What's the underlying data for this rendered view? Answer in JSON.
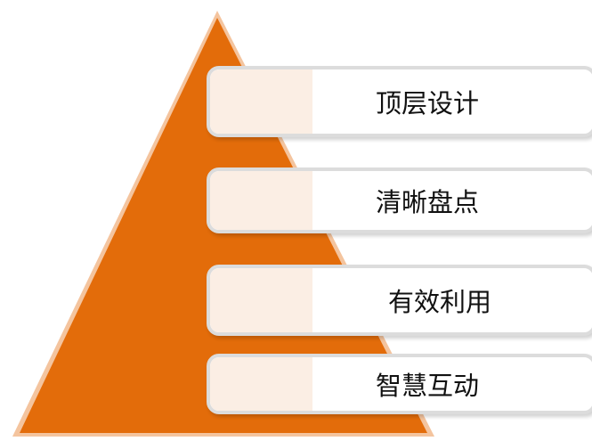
{
  "pyramid": {
    "fill_color": "#e36c0a",
    "outline_color": "#f4c49e",
    "levels": [
      {
        "label": "顶层设计"
      },
      {
        "label": "清晰盘点"
      },
      {
        "label": "有效利用"
      },
      {
        "label": "智慧互动"
      }
    ]
  }
}
